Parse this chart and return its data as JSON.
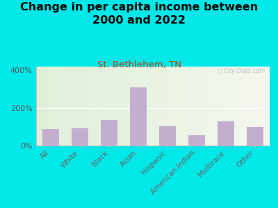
{
  "title": "Change in per capita income between\n2000 and 2022",
  "subtitle": "St. Bethlehem, TN",
  "categories": [
    "All",
    "White",
    "Black",
    "Asian",
    "Hispanic",
    "American Indian",
    "Multirace",
    "Other"
  ],
  "values": [
    90,
    92,
    135,
    310,
    105,
    55,
    130,
    100
  ],
  "bar_color": "#c4aed0",
  "title_fontsize": 11.5,
  "subtitle_color": "#b04010",
  "subtitle_fontsize": 9.5,
  "background_outer": "#00e8e8",
  "ylim": [
    0,
    420
  ],
  "yticks": [
    0,
    200,
    400
  ],
  "ytick_labels": [
    "0%",
    "200%",
    "400%"
  ],
  "watermark": "ⓘ City-Data.com"
}
